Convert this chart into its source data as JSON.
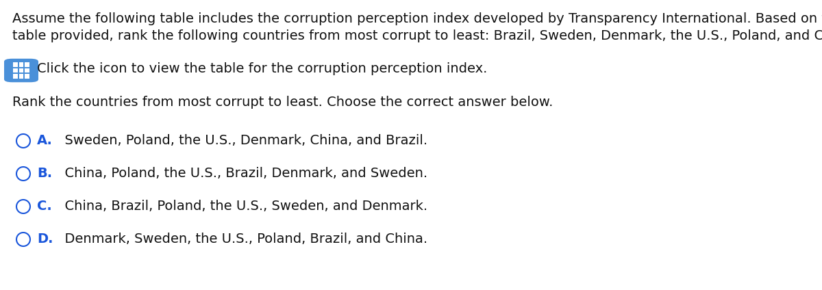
{
  "background_color": "#ffffff",
  "paragraph1_line1": "Assume the following table includes the corruption perception index developed by Transparency International. Based on the",
  "paragraph1_line2": "table provided, rank the following countries from most corrupt to least: Brazil, Sweden, Denmark, the U.S., Poland, and China.",
  "icon_text": "Click the icon to view the table for the corruption perception index.",
  "paragraph2": "Rank the countries from most corrupt to least. Choose the correct answer below.",
  "options": [
    {
      "label": "A.",
      "text": "  Sweden, Poland, the U.S., Denmark, China, and Brazil."
    },
    {
      "label": "B.",
      "text": "  China, Poland, the U.S., Brazil, Denmark, and Sweden."
    },
    {
      "label": "C.",
      "text": "  China, Brazil, Poland, the U.S., Sweden, and Denmark."
    },
    {
      "label": "D.",
      "text": "  Denmark, Sweden, the U.S., Poland, Brazil, and China."
    }
  ],
  "label_color": "#1a56db",
  "icon_bg_color": "#4a90d9",
  "icon_fg_color": "#ffffff",
  "text_color": "#111111",
  "font_size_body": 14.0,
  "font_size_options": 14.0,
  "font_family": "DejaVu Sans",
  "fig_width": 12.0,
  "fig_height": 4.24,
  "dpi": 100
}
